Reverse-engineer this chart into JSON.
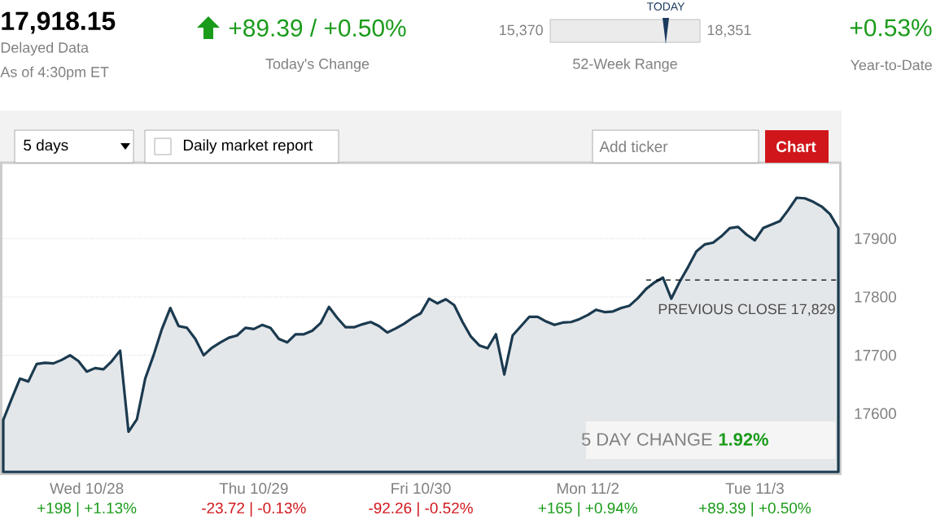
{
  "chart_data": {
    "type": "area",
    "title": "17,918.15",
    "annotations": [
      "Delayed Data",
      "As of 4:30pm ET",
      "+89.39 / +0.50%",
      "Today's Change",
      "15,370",
      "18,351",
      "TODAY",
      "52-Week Range",
      "+0.53%",
      "Year-to-Date",
      "5 days",
      "Daily market report",
      "Add ticker",
      "Chart",
      "5 DAY CHANGE",
      "1.92%",
      "+198 | +1.13%",
      "-23.72 | -0.13%",
      "-92.26 | -0.52%",
      "+165 | +0.94%",
      "+89.39 | +0.50%"
    ],
    "categories": [
      null,
      null,
      null,
      null,
      null,
      null,
      null,
      null,
      null,
      null,
      "Wed 10/28",
      null,
      null,
      null,
      null,
      null,
      null,
      null,
      null,
      null,
      null,
      null,
      null,
      null,
      null,
      null,
      null,
      null,
      null,
      null,
      "Thu 10/29",
      null,
      null,
      null,
      null,
      null,
      null,
      null,
      null,
      null,
      null,
      null,
      null,
      null,
      null,
      null,
      null,
      null,
      null,
      null,
      "Fri 10/30",
      null,
      null,
      null,
      null,
      null,
      null,
      null,
      null,
      null,
      null,
      null,
      null,
      null,
      null,
      null,
      null,
      null,
      null,
      null,
      "Mon 11/2",
      null,
      null,
      null,
      null,
      null,
      null,
      null,
      null,
      null,
      null,
      null,
      null,
      null,
      null,
      null,
      null,
      null,
      null,
      null,
      "Tue 11/3",
      null,
      null,
      null,
      null,
      null,
      null,
      null,
      null,
      null,
      null
    ],
    "series": [
      {
        "color": "#1b3a4f",
        "values": [
          17589,
          17625,
          17660,
          17655,
          17685,
          17687,
          17686,
          17692,
          17700,
          17690,
          17672,
          17678,
          17676,
          17690,
          17708,
          17569,
          17590,
          17660,
          17700,
          17745,
          17781,
          17750,
          17747,
          17728,
          17700,
          17713,
          17722,
          17730,
          17734,
          17747,
          17745,
          17752,
          17747,
          17728,
          17722,
          17736,
          17736,
          17742,
          17755,
          17783,
          17764,
          17748,
          17748,
          17753,
          17757,
          17750,
          17739,
          17746,
          17754,
          17764,
          17772,
          17797,
          17789,
          17796,
          17786,
          17757,
          17732,
          17717,
          17712,
          17736,
          17667,
          17734,
          17750,
          17766,
          17766,
          17758,
          17752,
          17756,
          17757,
          17762,
          17769,
          17778,
          17774,
          17775,
          17781,
          17785,
          17798,
          17814,
          17825,
          17833,
          17797,
          17826,
          17851,
          17878,
          17890,
          17893,
          17904,
          17918,
          17920,
          17907,
          17897,
          17918,
          17924,
          17930,
          17949,
          17970,
          17969,
          17963,
          17955,
          17942,
          17918
        ]
      }
    ],
    "ylim": [
      17500,
      18030
    ],
    "yticks": [
      17600,
      17700,
      17800,
      17900
    ],
    "grid": "y",
    "ref_lines": [
      {
        "axis": "y",
        "value": 17829,
        "label": "PREVIOUS CLOSE 17,829",
        "line_style": "dashed"
      }
    ]
  }
}
